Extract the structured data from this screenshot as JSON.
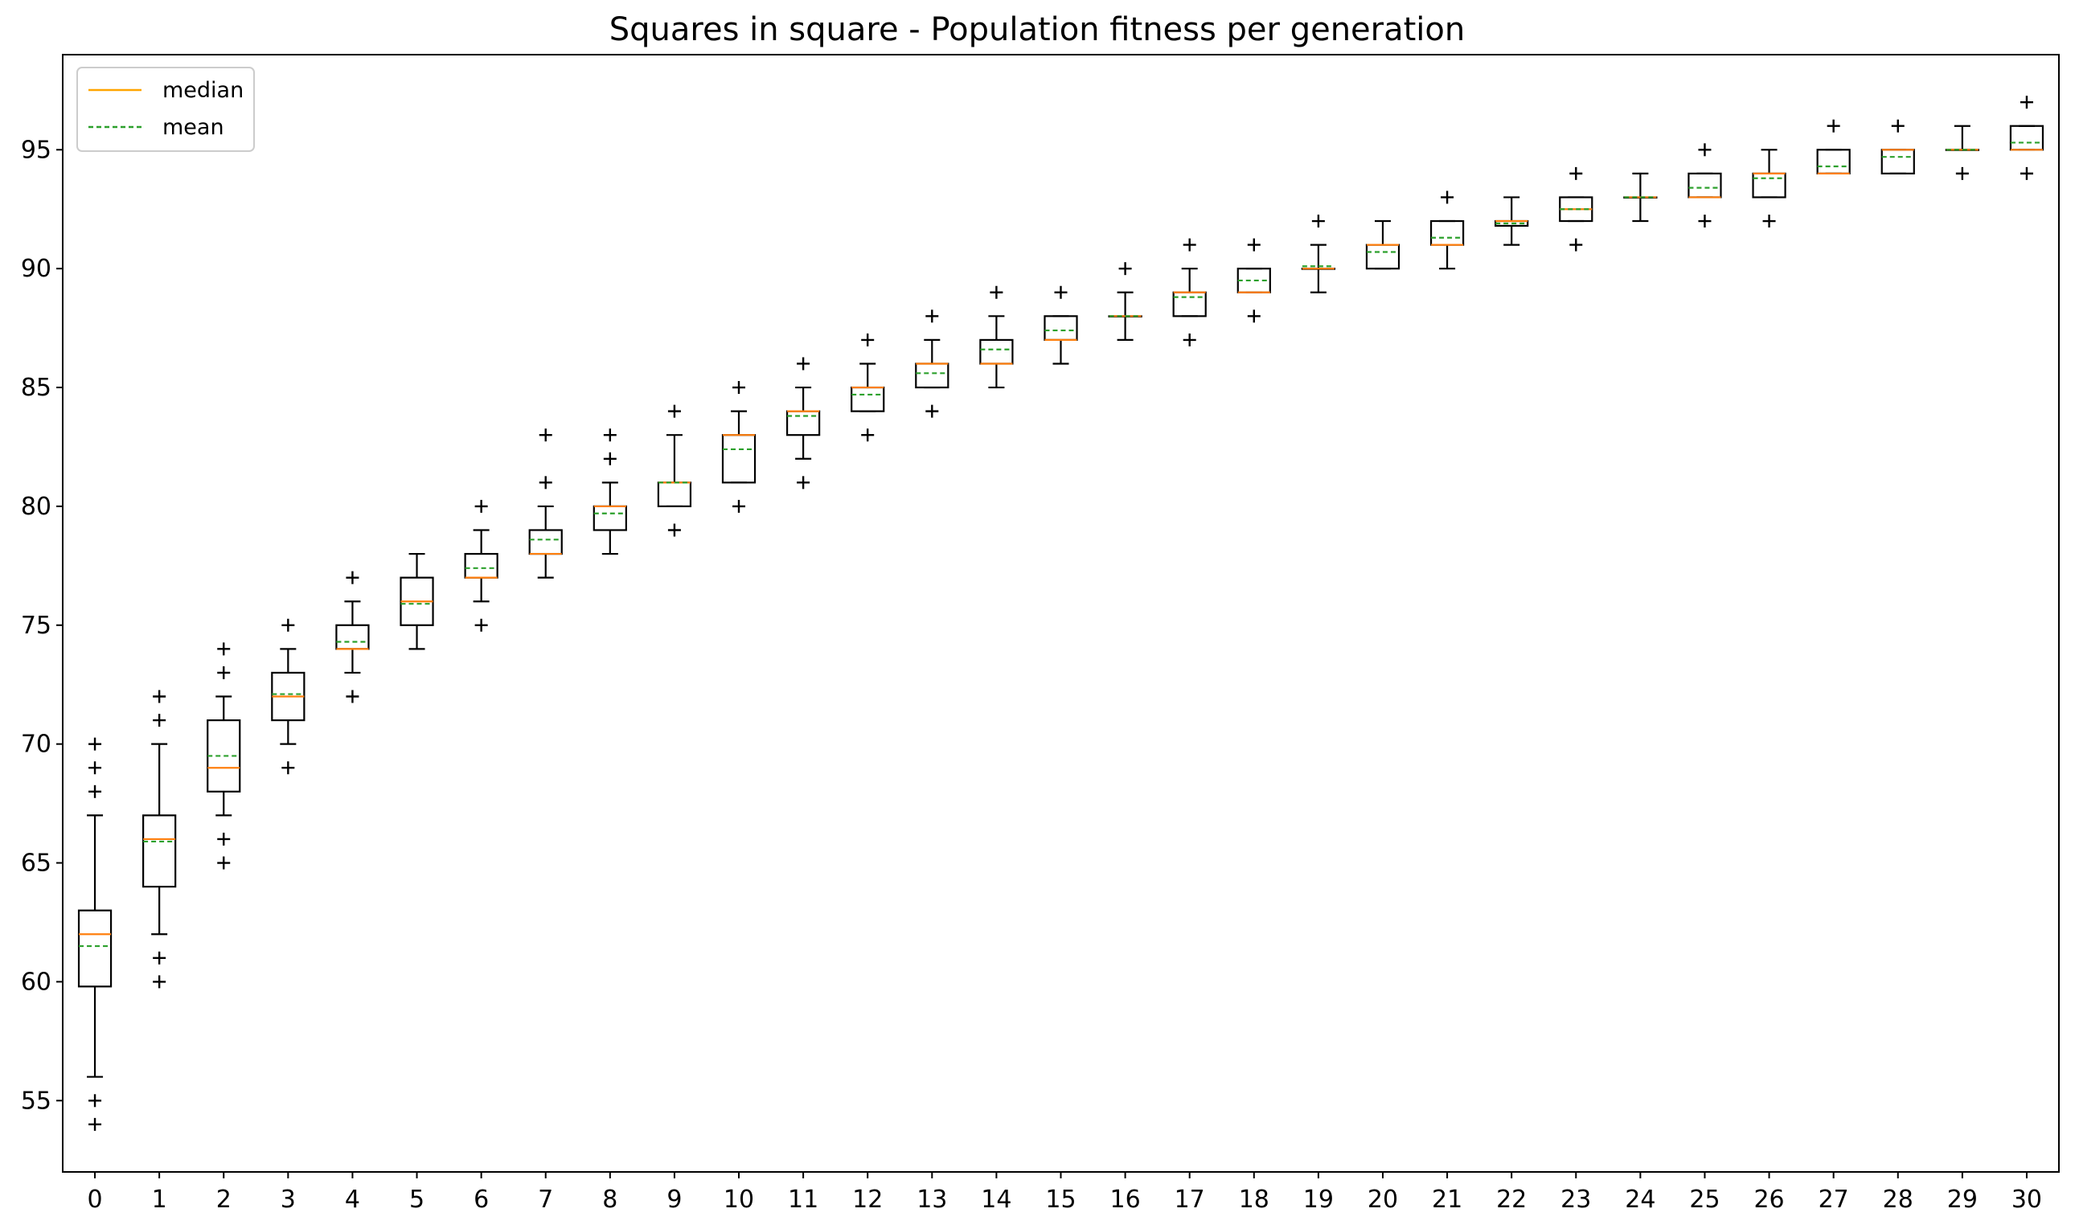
{
  "chart_data": {
    "type": "boxplot",
    "title": "Squares in square - Population fitness per generation",
    "xlabel": "",
    "ylabel": "",
    "ylim": [
      52,
      99
    ],
    "yticks": [
      55,
      60,
      65,
      70,
      75,
      80,
      85,
      90,
      95
    ],
    "grid": false,
    "legend": {
      "position": "top-left",
      "entries": [
        {
          "label": "median",
          "color": "#ffa500",
          "style": "solid"
        },
        {
          "label": "mean",
          "color": "#2ca02c",
          "style": "dashed"
        }
      ]
    },
    "colors": {
      "box": "#000000",
      "median": "#ff7f0e",
      "mean": "#2ca02c",
      "flier": "#000000"
    },
    "boxes": [
      {
        "x": 0,
        "whislo": 56,
        "q1": 59.8,
        "med": 62,
        "mean": 61.5,
        "q3": 63,
        "whishi": 67,
        "fliers": [
          54,
          55,
          68,
          69,
          70
        ]
      },
      {
        "x": 1,
        "whislo": 62,
        "q1": 64,
        "med": 66,
        "mean": 65.9,
        "q3": 67,
        "whishi": 70,
        "fliers": [
          60,
          61,
          71,
          72
        ]
      },
      {
        "x": 2,
        "whislo": 67,
        "q1": 68,
        "med": 69,
        "mean": 69.5,
        "q3": 71,
        "whishi": 72,
        "fliers": [
          65,
          66,
          73,
          74
        ]
      },
      {
        "x": 3,
        "whislo": 70,
        "q1": 71,
        "med": 72,
        "mean": 72.1,
        "q3": 73,
        "whishi": 74,
        "fliers": [
          69,
          75
        ]
      },
      {
        "x": 4,
        "whislo": 73,
        "q1": 74,
        "med": 74,
        "mean": 74.3,
        "q3": 75,
        "whishi": 76,
        "fliers": [
          72,
          77
        ]
      },
      {
        "x": 5,
        "whislo": 74,
        "q1": 75,
        "med": 76,
        "mean": 75.9,
        "q3": 77,
        "whishi": 78,
        "fliers": []
      },
      {
        "x": 6,
        "whislo": 76,
        "q1": 77,
        "med": 77,
        "mean": 77.4,
        "q3": 78,
        "whishi": 79,
        "fliers": [
          75,
          80
        ]
      },
      {
        "x": 7,
        "whislo": 77,
        "q1": 78,
        "med": 78,
        "mean": 78.6,
        "q3": 79,
        "whishi": 80,
        "fliers": [
          81,
          83
        ]
      },
      {
        "x": 8,
        "whislo": 78,
        "q1": 79,
        "med": 80,
        "mean": 79.7,
        "q3": 80,
        "whishi": 81,
        "fliers": [
          82,
          83
        ]
      },
      {
        "x": 9,
        "whislo": 80,
        "q1": 80,
        "med": 81,
        "mean": 81,
        "q3": 81,
        "whishi": 83,
        "fliers": [
          79,
          84
        ]
      },
      {
        "x": 10,
        "whislo": 81,
        "q1": 81,
        "med": 83,
        "mean": 82.4,
        "q3": 83,
        "whishi": 84,
        "fliers": [
          80,
          85
        ]
      },
      {
        "x": 11,
        "whislo": 82,
        "q1": 83,
        "med": 84,
        "mean": 83.8,
        "q3": 84,
        "whishi": 85,
        "fliers": [
          81,
          86
        ]
      },
      {
        "x": 12,
        "whislo": 84,
        "q1": 84,
        "med": 85,
        "mean": 84.7,
        "q3": 85,
        "whishi": 86,
        "fliers": [
          83,
          87
        ]
      },
      {
        "x": 13,
        "whislo": 85,
        "q1": 85,
        "med": 86,
        "mean": 85.6,
        "q3": 86,
        "whishi": 87,
        "fliers": [
          84,
          88
        ]
      },
      {
        "x": 14,
        "whislo": 85,
        "q1": 86,
        "med": 86,
        "mean": 86.6,
        "q3": 87,
        "whishi": 88,
        "fliers": [
          89
        ]
      },
      {
        "x": 15,
        "whislo": 86,
        "q1": 87,
        "med": 87,
        "mean": 87.4,
        "q3": 88,
        "whishi": 88,
        "fliers": [
          89
        ]
      },
      {
        "x": 16,
        "whislo": 87,
        "q1": 88,
        "med": 88,
        "mean": 88,
        "q3": 88,
        "whishi": 89,
        "fliers": [
          90
        ]
      },
      {
        "x": 17,
        "whislo": 88,
        "q1": 88,
        "med": 89,
        "mean": 88.8,
        "q3": 89,
        "whishi": 90,
        "fliers": [
          87,
          91
        ]
      },
      {
        "x": 18,
        "whislo": 89,
        "q1": 89,
        "med": 89,
        "mean": 89.5,
        "q3": 90,
        "whishi": 90,
        "fliers": [
          88,
          91
        ]
      },
      {
        "x": 19,
        "whislo": 89,
        "q1": 90,
        "med": 90,
        "mean": 90.1,
        "q3": 90,
        "whishi": 91,
        "fliers": [
          92
        ]
      },
      {
        "x": 20,
        "whislo": 90,
        "q1": 90,
        "med": 91,
        "mean": 90.7,
        "q3": 91,
        "whishi": 92,
        "fliers": []
      },
      {
        "x": 21,
        "whislo": 90,
        "q1": 91,
        "med": 91,
        "mean": 91.3,
        "q3": 92,
        "whishi": 92,
        "fliers": [
          93
        ]
      },
      {
        "x": 22,
        "whislo": 91,
        "q1": 91.8,
        "med": 92,
        "mean": 91.9,
        "q3": 92,
        "whishi": 93,
        "fliers": []
      },
      {
        "x": 23,
        "whislo": 92,
        "q1": 92,
        "med": 92.5,
        "mean": 92.5,
        "q3": 93,
        "whishi": 93,
        "fliers": [
          91,
          94
        ]
      },
      {
        "x": 24,
        "whislo": 92,
        "q1": 93,
        "med": 93,
        "mean": 93,
        "q3": 93,
        "whishi": 94,
        "fliers": []
      },
      {
        "x": 25,
        "whislo": 93,
        "q1": 93,
        "med": 93,
        "mean": 93.4,
        "q3": 94,
        "whishi": 94,
        "fliers": [
          92,
          95
        ]
      },
      {
        "x": 26,
        "whislo": 93,
        "q1": 93,
        "med": 94,
        "mean": 93.8,
        "q3": 94,
        "whishi": 95,
        "fliers": [
          92
        ]
      },
      {
        "x": 27,
        "whislo": 94,
        "q1": 94,
        "med": 94,
        "mean": 94.3,
        "q3": 95,
        "whishi": 95,
        "fliers": [
          96
        ]
      },
      {
        "x": 28,
        "whislo": 94,
        "q1": 94,
        "med": 95,
        "mean": 94.7,
        "q3": 95,
        "whishi": 95,
        "fliers": [
          96
        ]
      },
      {
        "x": 29,
        "whislo": 95,
        "q1": 95,
        "med": 95,
        "mean": 95,
        "q3": 95,
        "whishi": 96,
        "fliers": [
          94
        ]
      },
      {
        "x": 30,
        "whislo": 95,
        "q1": 95,
        "med": 95,
        "mean": 95.3,
        "q3": 96,
        "whishi": 96,
        "fliers": [
          94,
          97
        ]
      }
    ]
  }
}
